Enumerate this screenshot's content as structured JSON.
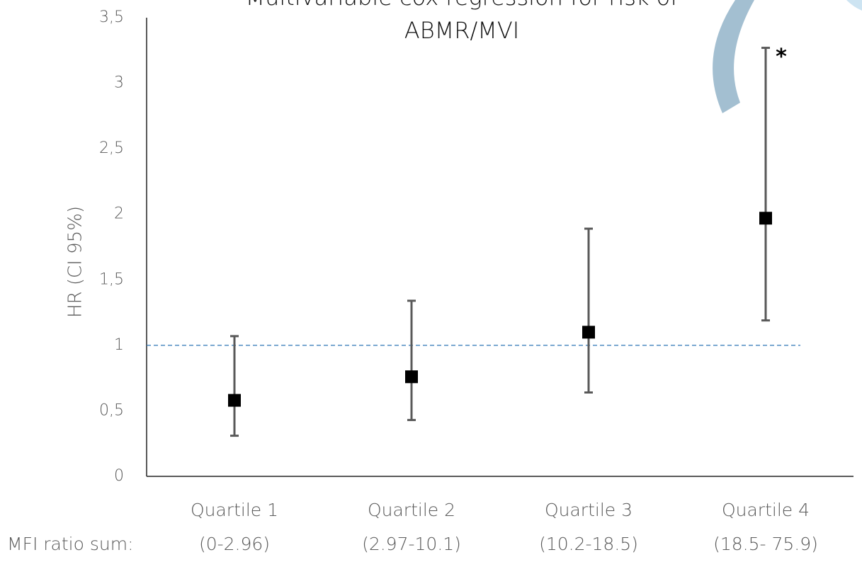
{
  "chart_data": {
    "type": "errorbar",
    "title": [
      "Multivariable cox regression for risk of",
      "ABMR/MVI"
    ],
    "y_label": "HR (CI 95%)",
    "range_label": "MFI ratio sum:",
    "categories": [
      "Quartile 1",
      "Quartile 2",
      "Quartile 3",
      "Quartile 4"
    ],
    "category_ranges": [
      "(0-2.96)",
      "(2.97-10.1)",
      "(10.2-18.5)",
      "(18.5- 75.9)"
    ],
    "series": [
      {
        "color": "#000000",
        "values": [
          0.58,
          0.76,
          1.1,
          1.97
        ],
        "ci_lower": [
          0.31,
          0.43,
          0.64,
          1.19
        ],
        "ci_upper": [
          1.07,
          1.34,
          1.89,
          3.27
        ]
      }
    ],
    "reference_line": 1,
    "annotation": "*",
    "ylim": [
      0,
      3.5
    ],
    "yticks": [
      0,
      {
        "value": 0.5,
        "label": "0,5"
      },
      1,
      {
        "value": 1.5,
        "label": "1,5"
      },
      2,
      {
        "value": 2.5,
        "label": "2,5"
      },
      3,
      {
        "value": 3.5,
        "label": "3,5"
      }
    ],
    "grid": false
  }
}
